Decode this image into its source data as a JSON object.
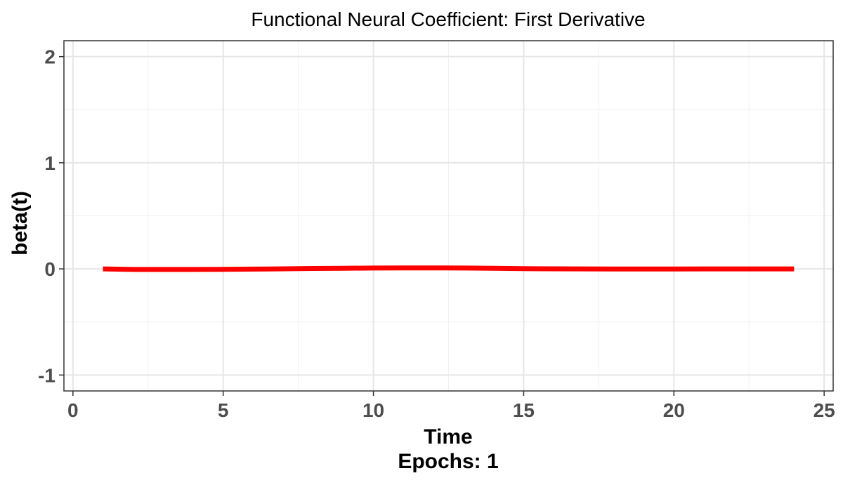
{
  "chart_data": {
    "type": "line",
    "title": "Functional Neural Coefficient: First Derivative",
    "xlabel": "Time",
    "caption": "Epochs: 1",
    "ylabel": "beta(t)",
    "xlim": [
      -0.3,
      25.3
    ],
    "ylim": [
      -1.15,
      2.15
    ],
    "x_ticks": [
      0,
      5,
      10,
      15,
      20,
      25
    ],
    "y_ticks": [
      -1,
      0,
      1,
      2
    ],
    "grid": true,
    "series": [
      {
        "color": "#ff0000",
        "x": [
          1,
          2,
          3,
          4,
          5,
          6,
          7,
          8,
          9,
          10,
          11,
          12,
          13,
          14,
          15,
          16,
          17,
          18,
          19,
          20,
          21,
          22,
          23,
          24
        ],
        "y": [
          0.0,
          -0.005,
          -0.005,
          -0.005,
          -0.004,
          -0.002,
          0.001,
          0.004,
          0.006,
          0.008,
          0.009,
          0.009,
          0.008,
          0.006,
          0.003,
          0.001,
          0.0,
          -0.001,
          -0.001,
          -0.001,
          0.0,
          0.0,
          0.0,
          0.0
        ]
      }
    ]
  }
}
